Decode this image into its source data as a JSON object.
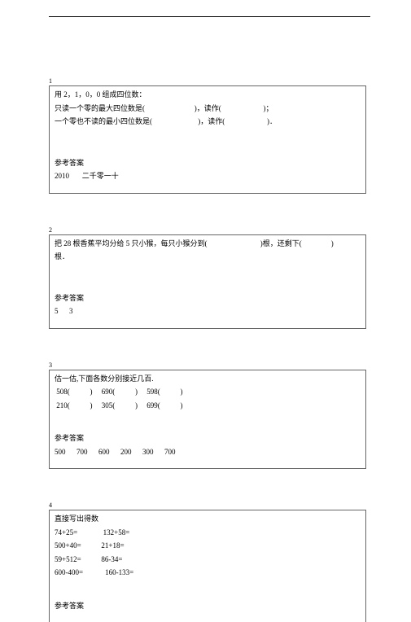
{
  "q1": {
    "num": "1",
    "l1": "用 2，1，0，0 组成四位数：",
    "l2": "只读一个零的最大四位数是(                           )，读作(                       )；",
    "l3": "一个零也不读的最小四位数是(                         )，读作(                       )．",
    "ans_label": "参考答案",
    "ans": "2010       二千零一十"
  },
  "q2": {
    "num": "2",
    "l1": "把 28 根香蕉平均分给 5 只小猴，每只小猴分到(                             )根，还剩下(                )",
    "l2": "根．",
    "ans_label": "参考答案",
    "ans": "5      3"
  },
  "q3": {
    "num": "3",
    "l1": "估一估,下面各数分别接近几百.",
    "r1": " 508(           )     690(           )     598(           )",
    "r2": " 210(           )     305(           )     699(           )",
    "ans_label": "参考答案",
    "ans": "500      700      600      200      300      700"
  },
  "q4": {
    "num": "4",
    "l1": "直接写出得数",
    "r1": "74+25=              132+58=",
    "r2": "500+40=           21+18=",
    "r3": "59+512=           86-34=",
    "r4": "600-400=            160-133=",
    "ans_label": "参考答案"
  }
}
